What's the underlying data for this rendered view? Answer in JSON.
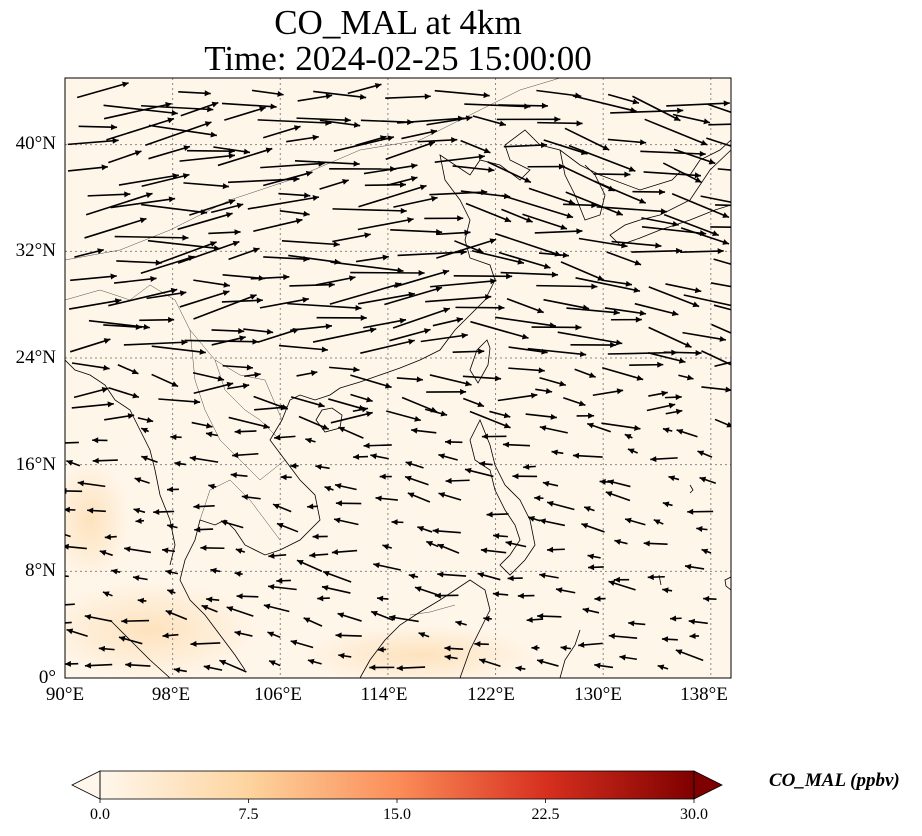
{
  "figure": {
    "title_line1": "CO_MAL at 4km",
    "title_line2": "Time: 2024-02-25 15:00:00"
  },
  "map": {
    "projection": "PlateCarree",
    "lon_range": [
      90,
      139.5
    ],
    "lat_range": [
      0,
      45
    ],
    "gridlines": "dotted",
    "features": [
      "coastlines",
      "borders"
    ],
    "background_color": "#fff6ea",
    "lat_ticks": [
      "0°",
      "8°N",
      "16°N",
      "24°N",
      "32°N",
      "40°N"
    ],
    "lon_ticks": [
      "90°E",
      "98°E",
      "106°E",
      "114°E",
      "122°E",
      "130°E",
      "138°E"
    ]
  },
  "chart_data": {
    "type": "heatmap",
    "variable": "CO_MAL",
    "level": "4km",
    "overlay": "wind vectors (quiver)",
    "field_summary": "near-uniform low values (~0-2 ppbv) across domain, slightly higher (~3-5 ppbv) south of 8°N near Borneo/Malay peninsula",
    "vector_summary": "westerly/west-northwesterly flow north of ~22°N, easterly/northeasterly trades south of ~20°N"
  },
  "colorbar": {
    "label": "CO_MAL (ppbv)",
    "colormap": "OrRd",
    "range": [
      0,
      30
    ],
    "ticks": [
      "0.0",
      "7.5",
      "15.0",
      "22.5",
      "30.0"
    ],
    "extend": "both",
    "colors": [
      "#fff7ec",
      "#fdd49e",
      "#fc8d59",
      "#d7301f",
      "#7f0000"
    ]
  }
}
